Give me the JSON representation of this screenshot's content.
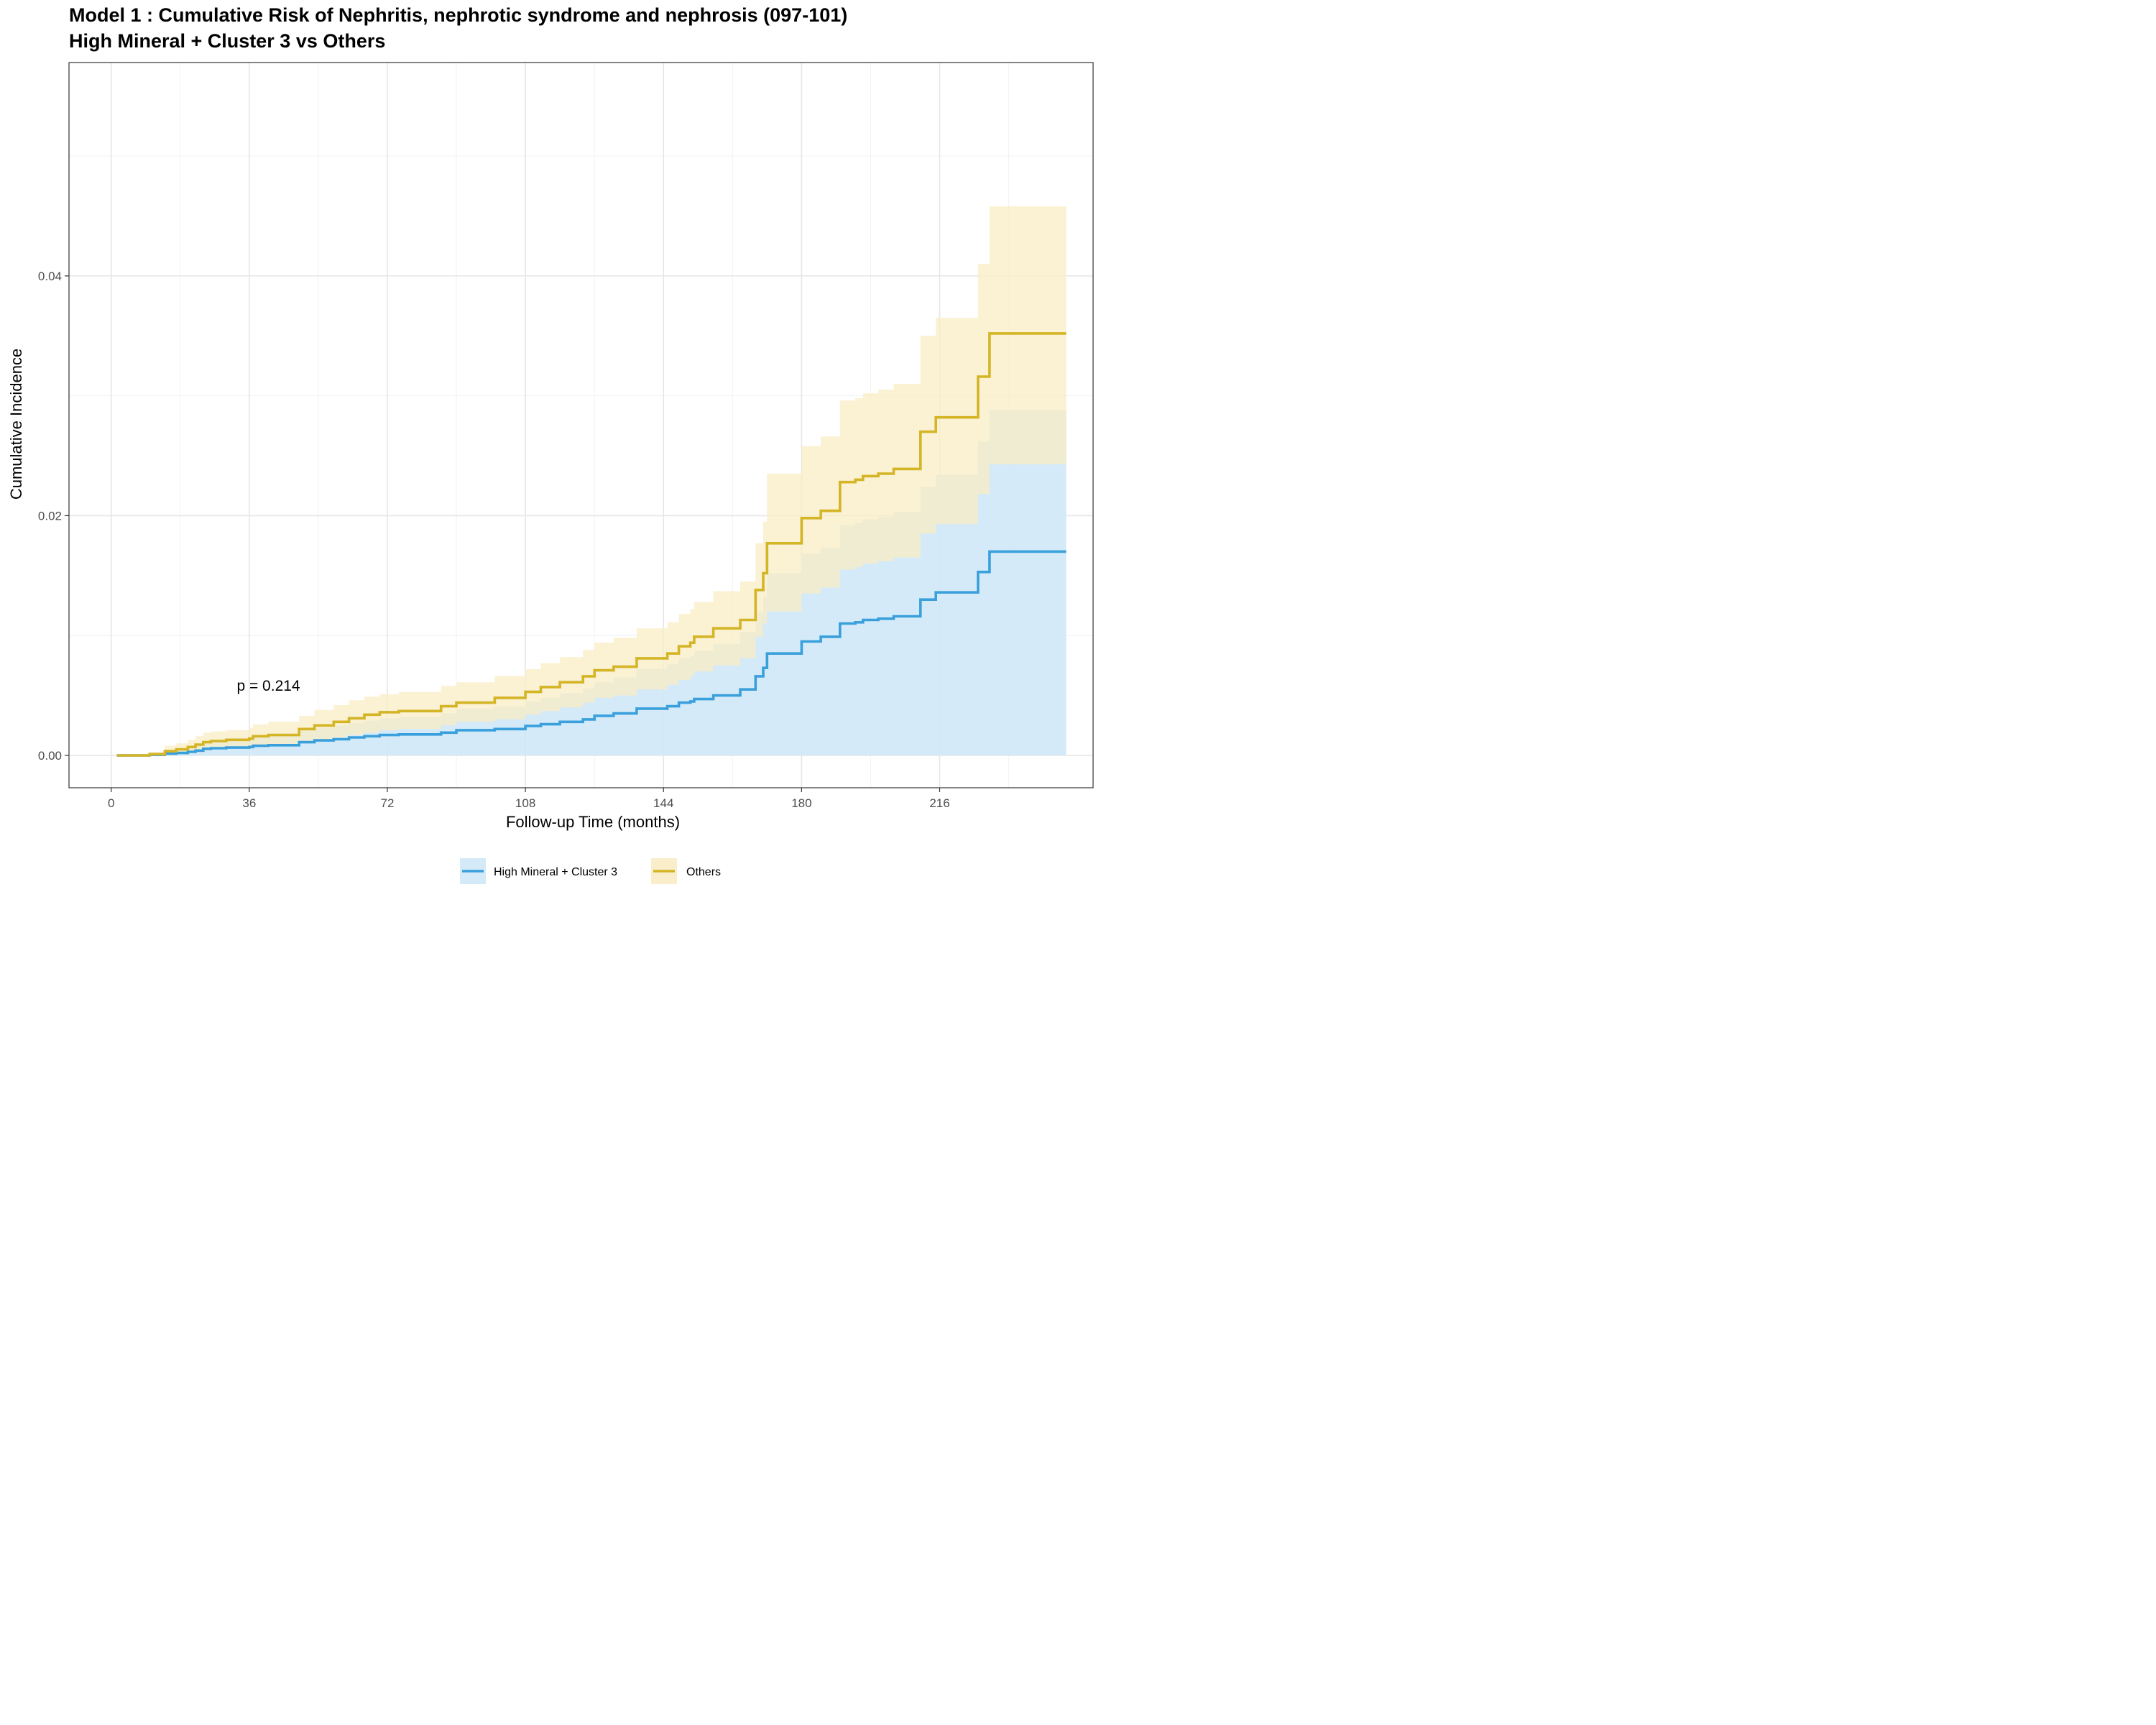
{
  "chart_data": {
    "type": "line",
    "title": "Model 1 : Cumulative Risk of Nephritis, nephrotic syndrome and nephrosis (097-101)",
    "subtitle": "High Mineral + Cluster 3 vs Others",
    "xlabel": "Follow-up Time (months)",
    "ylabel": "Cumulative Incidence",
    "xlim": [
      -11,
      256
    ],
    "ylim": [
      -0.0027,
      0.0578
    ],
    "x_ticks": [
      "0",
      "36",
      "72",
      "108",
      "144",
      "180",
      "216"
    ],
    "x_tick_values": [
      0,
      36,
      72,
      108,
      144,
      180,
      216
    ],
    "y_ticks": [
      "0.00",
      "0.02",
      "0.04"
    ],
    "y_tick_values": [
      0,
      0.02,
      0.04
    ],
    "grid": true,
    "legend_position": "bottom",
    "annotation": "p = 0.214",
    "annotation_pos": {
      "x": 41,
      "y": 0.0054
    },
    "series": [
      {
        "name": "High Mineral + Cluster 3",
        "color": "#3aa0dc",
        "band_color": "#cfe8f7",
        "steps": [
          [
            1.5,
            0.0
          ],
          [
            10,
            5e-05
          ],
          [
            14,
            0.00015
          ],
          [
            17,
            0.0002
          ],
          [
            20,
            0.0003
          ],
          [
            22,
            0.0004
          ],
          [
            24,
            0.00055
          ],
          [
            26,
            0.0006
          ],
          [
            30,
            0.00065
          ],
          [
            36,
            0.0007
          ],
          [
            37,
            0.0008
          ],
          [
            41,
            0.00085
          ],
          [
            49,
            0.0011
          ],
          [
            53,
            0.00125
          ],
          [
            58,
            0.00135
          ],
          [
            62,
            0.0015
          ],
          [
            66,
            0.0016
          ],
          [
            70,
            0.0017
          ],
          [
            75,
            0.00175
          ],
          [
            86,
            0.0019
          ],
          [
            90,
            0.0021
          ],
          [
            100,
            0.0022
          ],
          [
            108,
            0.00245
          ],
          [
            112,
            0.0026
          ],
          [
            117,
            0.0028
          ],
          [
            123,
            0.003
          ],
          [
            126,
            0.0033
          ],
          [
            131,
            0.0035
          ],
          [
            137,
            0.0039
          ],
          [
            145,
            0.0041
          ],
          [
            148,
            0.0044
          ],
          [
            151,
            0.0045
          ],
          [
            152,
            0.0047
          ],
          [
            157,
            0.005
          ],
          [
            164,
            0.0055
          ],
          [
            168,
            0.0066
          ],
          [
            170,
            0.0073
          ],
          [
            171,
            0.0085
          ],
          [
            180,
            0.0095
          ],
          [
            185,
            0.0099
          ],
          [
            190,
            0.011
          ],
          [
            194,
            0.0111
          ],
          [
            196,
            0.0113
          ],
          [
            200,
            0.0114
          ],
          [
            204,
            0.0116
          ],
          [
            211,
            0.013
          ],
          [
            215,
            0.0136
          ],
          [
            226,
            0.0153
          ],
          [
            229,
            0.017
          ],
          [
            249,
            0.017
          ]
        ],
        "upper": [
          [
            1.5,
            0.0
          ],
          [
            10,
            0.0001
          ],
          [
            14,
            0.00035
          ],
          [
            17,
            0.0005
          ],
          [
            20,
            0.0007
          ],
          [
            22,
            0.0009
          ],
          [
            24,
            0.0011
          ],
          [
            26,
            0.0012
          ],
          [
            30,
            0.0013
          ],
          [
            36,
            0.0014
          ],
          [
            37,
            0.0015
          ],
          [
            41,
            0.0016
          ],
          [
            49,
            0.0021
          ],
          [
            53,
            0.0023
          ],
          [
            58,
            0.0025
          ],
          [
            62,
            0.0027
          ],
          [
            66,
            0.0029
          ],
          [
            70,
            0.0031
          ],
          [
            75,
            0.0032
          ],
          [
            86,
            0.0035
          ],
          [
            90,
            0.0039
          ],
          [
            100,
            0.0041
          ],
          [
            108,
            0.0045
          ],
          [
            112,
            0.0048
          ],
          [
            117,
            0.0052
          ],
          [
            123,
            0.0056
          ],
          [
            126,
            0.0061
          ],
          [
            131,
            0.0065
          ],
          [
            137,
            0.0072
          ],
          [
            145,
            0.0076
          ],
          [
            148,
            0.0081
          ],
          [
            151,
            0.0083
          ],
          [
            152,
            0.0087
          ],
          [
            157,
            0.0093
          ],
          [
            164,
            0.0103
          ],
          [
            168,
            0.0119
          ],
          [
            170,
            0.0132
          ],
          [
            171,
            0.0152
          ],
          [
            180,
            0.0168
          ],
          [
            185,
            0.0173
          ],
          [
            190,
            0.0192
          ],
          [
            194,
            0.0194
          ],
          [
            196,
            0.0197
          ],
          [
            200,
            0.0199
          ],
          [
            204,
            0.0203
          ],
          [
            211,
            0.0224
          ],
          [
            215,
            0.0234
          ],
          [
            226,
            0.0262
          ],
          [
            229,
            0.0288
          ],
          [
            249,
            0.0288
          ]
        ],
        "lower": [
          [
            1.5,
            0.0
          ],
          [
            249,
            0.0
          ]
        ]
      },
      {
        "name": "Others",
        "color": "#d4b526",
        "band_color": "#faecc4",
        "steps": [
          [
            1.5,
            0.0
          ],
          [
            10,
            0.0001
          ],
          [
            14,
            0.00035
          ],
          [
            17,
            0.0005
          ],
          [
            20,
            0.0007
          ],
          [
            22,
            0.0009
          ],
          [
            24,
            0.0011
          ],
          [
            26,
            0.0012
          ],
          [
            30,
            0.0013
          ],
          [
            36,
            0.0014
          ],
          [
            37,
            0.0016
          ],
          [
            41,
            0.0017
          ],
          [
            49,
            0.0022
          ],
          [
            53,
            0.0025
          ],
          [
            58,
            0.0028
          ],
          [
            62,
            0.0031
          ],
          [
            66,
            0.0034
          ],
          [
            70,
            0.0036
          ],
          [
            75,
            0.0037
          ],
          [
            86,
            0.0041
          ],
          [
            90,
            0.0044
          ],
          [
            100,
            0.0048
          ],
          [
            108,
            0.0053
          ],
          [
            112,
            0.0057
          ],
          [
            117,
            0.0061
          ],
          [
            123,
            0.0066
          ],
          [
            126,
            0.0071
          ],
          [
            131,
            0.0074
          ],
          [
            137,
            0.0081
          ],
          [
            145,
            0.0085
          ],
          [
            148,
            0.0091
          ],
          [
            151,
            0.0094
          ],
          [
            152,
            0.0099
          ],
          [
            157,
            0.0106
          ],
          [
            164,
            0.0113
          ],
          [
            168,
            0.0138
          ],
          [
            170,
            0.0152
          ],
          [
            171,
            0.0177
          ],
          [
            180,
            0.0198
          ],
          [
            185,
            0.0204
          ],
          [
            190,
            0.0228
          ],
          [
            194,
            0.023
          ],
          [
            196,
            0.0233
          ],
          [
            200,
            0.0235
          ],
          [
            204,
            0.0239
          ],
          [
            211,
            0.027
          ],
          [
            215,
            0.0282
          ],
          [
            226,
            0.0316
          ],
          [
            229,
            0.0352
          ],
          [
            249,
            0.0352
          ]
        ],
        "upper": [
          [
            1.5,
            0.0
          ],
          [
            10,
            0.0003
          ],
          [
            14,
            0.0008
          ],
          [
            17,
            0.001
          ],
          [
            20,
            0.0013
          ],
          [
            22,
            0.0016
          ],
          [
            24,
            0.0019
          ],
          [
            26,
            0.002
          ],
          [
            30,
            0.0021
          ],
          [
            36,
            0.0023
          ],
          [
            37,
            0.0026
          ],
          [
            41,
            0.0028
          ],
          [
            49,
            0.0033
          ],
          [
            53,
            0.0038
          ],
          [
            58,
            0.0042
          ],
          [
            62,
            0.0046
          ],
          [
            66,
            0.0049
          ],
          [
            70,
            0.0051
          ],
          [
            75,
            0.0053
          ],
          [
            86,
            0.0058
          ],
          [
            90,
            0.0061
          ],
          [
            100,
            0.0066
          ],
          [
            108,
            0.0072
          ],
          [
            112,
            0.0077
          ],
          [
            117,
            0.0082
          ],
          [
            123,
            0.0088
          ],
          [
            126,
            0.0094
          ],
          [
            131,
            0.0098
          ],
          [
            137,
            0.0106
          ],
          [
            145,
            0.0111
          ],
          [
            148,
            0.0118
          ],
          [
            151,
            0.0122
          ],
          [
            152,
            0.0128
          ],
          [
            157,
            0.0137
          ],
          [
            164,
            0.0145
          ],
          [
            168,
            0.0177
          ],
          [
            170,
            0.0195
          ],
          [
            171,
            0.0235
          ],
          [
            180,
            0.0258
          ],
          [
            185,
            0.0266
          ],
          [
            190,
            0.0296
          ],
          [
            194,
            0.0298
          ],
          [
            196,
            0.0302
          ],
          [
            200,
            0.0305
          ],
          [
            204,
            0.031
          ],
          [
            211,
            0.035
          ],
          [
            215,
            0.0365
          ],
          [
            226,
            0.041
          ],
          [
            229,
            0.0458
          ],
          [
            249,
            0.0458
          ]
        ],
        "lower": [
          [
            1.5,
            0.0
          ],
          [
            10,
            3e-05
          ],
          [
            14,
            0.0001
          ],
          [
            17,
            0.00015
          ],
          [
            20,
            0.0002
          ],
          [
            22,
            0.0003
          ],
          [
            24,
            0.0004
          ],
          [
            26,
            0.0005
          ],
          [
            30,
            0.0006
          ],
          [
            36,
            0.0007
          ],
          [
            37,
            0.0008
          ],
          [
            41,
            0.0009
          ],
          [
            49,
            0.0011
          ],
          [
            53,
            0.0013
          ],
          [
            58,
            0.0015
          ],
          [
            62,
            0.0017
          ],
          [
            66,
            0.0019
          ],
          [
            70,
            0.0021
          ],
          [
            75,
            0.0022
          ],
          [
            86,
            0.0025
          ],
          [
            90,
            0.0028
          ],
          [
            100,
            0.003
          ],
          [
            108,
            0.0034
          ],
          [
            112,
            0.0037
          ],
          [
            117,
            0.004
          ],
          [
            123,
            0.0044
          ],
          [
            126,
            0.0048
          ],
          [
            131,
            0.005
          ],
          [
            137,
            0.0055
          ],
          [
            145,
            0.0059
          ],
          [
            148,
            0.0063
          ],
          [
            151,
            0.0066
          ],
          [
            152,
            0.007
          ],
          [
            157,
            0.0075
          ],
          [
            164,
            0.0081
          ],
          [
            168,
            0.0099
          ],
          [
            170,
            0.011
          ],
          [
            171,
            0.012
          ],
          [
            180,
            0.0135
          ],
          [
            185,
            0.014
          ],
          [
            190,
            0.0155
          ],
          [
            194,
            0.0157
          ],
          [
            196,
            0.016
          ],
          [
            200,
            0.0162
          ],
          [
            204,
            0.0165
          ],
          [
            211,
            0.0185
          ],
          [
            215,
            0.0193
          ],
          [
            226,
            0.0218
          ],
          [
            229,
            0.0243
          ],
          [
            249,
            0.0243
          ]
        ]
      }
    ]
  }
}
